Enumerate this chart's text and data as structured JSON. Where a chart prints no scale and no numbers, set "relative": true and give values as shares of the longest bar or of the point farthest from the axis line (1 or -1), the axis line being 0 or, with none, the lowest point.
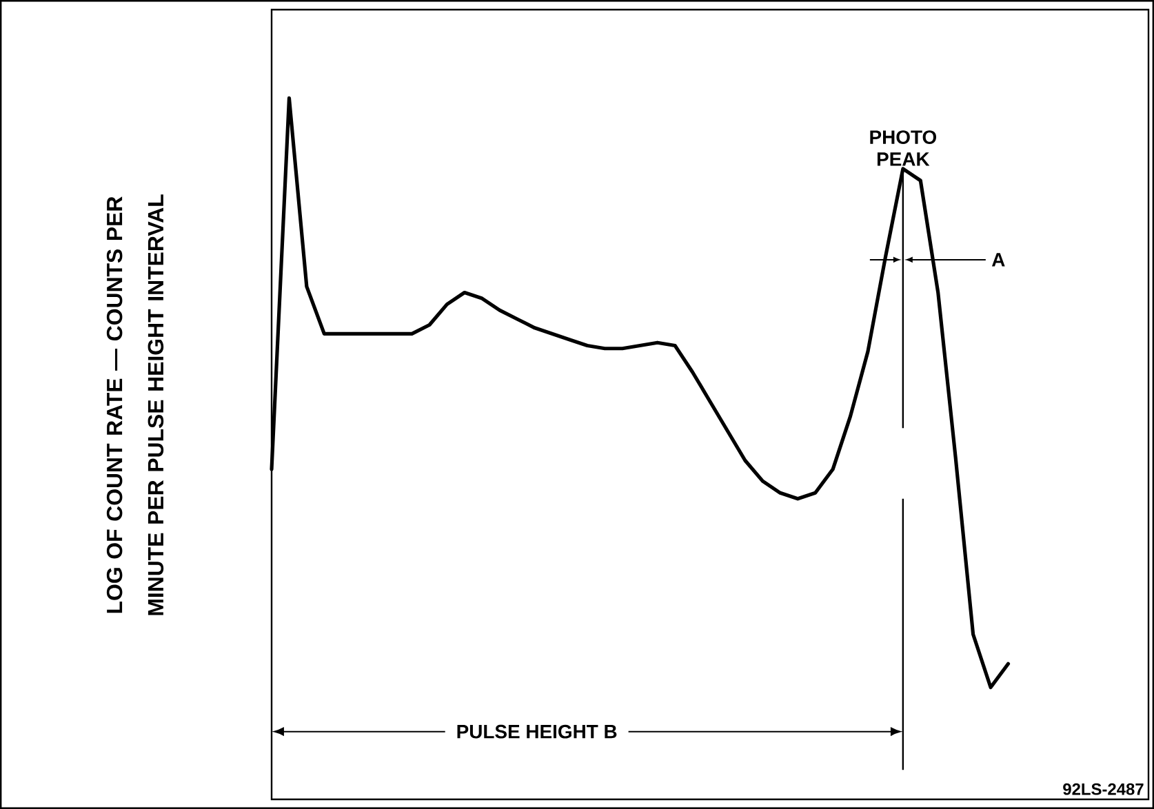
{
  "chart_data": {
    "type": "line",
    "relative": true,
    "ylabel": "LOG OF COUNT RATE — COUNTS PER MINUTE PER PULSE HEIGHT INTERVAL",
    "marker": "none",
    "line_style": "solid",
    "categories": [
      null,
      null,
      null,
      null,
      null,
      null,
      null,
      null,
      null,
      null,
      null,
      null,
      null,
      null,
      null,
      null,
      null,
      null,
      null,
      null,
      null,
      null,
      null,
      null,
      null,
      null,
      null,
      null,
      null,
      null,
      null,
      null,
      null,
      null,
      null,
      null,
      null,
      null,
      null,
      null,
      null,
      null,
      null,
      null,
      null,
      null,
      null,
      null,
      null,
      null,
      null
    ],
    "series": [
      {
        "color": "#000000",
        "values": [
          0.37,
          1.0,
          0.68,
          0.6,
          0.6,
          0.6,
          0.6,
          0.6,
          0.6,
          0.615,
          0.65,
          0.67,
          0.66,
          0.64,
          0.625,
          0.61,
          0.6,
          0.59,
          0.58,
          0.575,
          0.575,
          0.58,
          0.585,
          0.58,
          0.535,
          0.485,
          0.435,
          0.385,
          0.35,
          0.33,
          0.32,
          0.33,
          0.37,
          0.46,
          0.57,
          0.73,
          0.88,
          0.86,
          0.67,
          0.39,
          0.09,
          0.0,
          0.04,
          null,
          null,
          null,
          null,
          null,
          null,
          null,
          null
        ]
      }
    ],
    "annotations": [
      "PHOTO PEAK",
      "A",
      "PULSE HEIGHT B",
      "92LS-2487"
    ]
  }
}
